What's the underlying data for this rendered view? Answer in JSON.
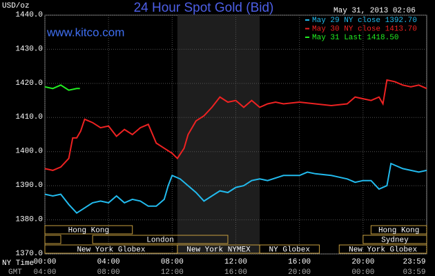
{
  "chart_data": {
    "type": "line",
    "title": "24 Hour Spot Gold (Bid)",
    "subtitle": "May 31, 2013 02:06",
    "watermark": "www.kitco.com",
    "ylabel": "USD/oz",
    "xlabel": "NY Time",
    "x2label": "GMT",
    "xlim": [
      0,
      24
    ],
    "ylim": [
      1370,
      1440
    ],
    "grid": true,
    "legend": "top-right",
    "background": "#000000",
    "shaded": [
      8.33,
      13.5
    ],
    "yticks": [
      {
        "value": 1370,
        "label": "1370.0"
      },
      {
        "value": 1380,
        "label": "1380.0"
      },
      {
        "value": 1390,
        "label": "1390.0"
      },
      {
        "value": 1400,
        "label": "1400.0"
      },
      {
        "value": 1410,
        "label": "1410.0"
      },
      {
        "value": 1420,
        "label": "1420.0"
      },
      {
        "value": 1430,
        "label": "1430.0"
      },
      {
        "value": 1440,
        "label": "1440.0"
      }
    ],
    "xticks": [
      {
        "value": 0,
        "label": "00:00"
      },
      {
        "value": 4,
        "label": "04:00"
      },
      {
        "value": 8,
        "label": "08:00"
      },
      {
        "value": 12,
        "label": "12:00"
      },
      {
        "value": 16,
        "label": "16:00"
      },
      {
        "value": 20,
        "label": "20:00"
      },
      {
        "value": 23.98,
        "label": "23:59"
      }
    ],
    "x2ticks": [
      {
        "value": 0,
        "label": "04:00"
      },
      {
        "value": 4,
        "label": "08:00"
      },
      {
        "value": 8,
        "label": "12:00"
      },
      {
        "value": 12,
        "label": "16:00"
      },
      {
        "value": 16,
        "label": "20:00"
      },
      {
        "value": 20,
        "label": "00:00"
      },
      {
        "value": 23.98,
        "label": "03:59"
      }
    ],
    "sessions": [
      {
        "label": "Hong Kong",
        "start": 0,
        "end": 5.5,
        "row": 0
      },
      {
        "label": "Hong Kong",
        "start": 20.5,
        "end": 24,
        "row": 0
      },
      {
        "label": "London",
        "start": 3,
        "end": 11.5,
        "row": 1
      },
      {
        "label": "Sydney",
        "start": 20,
        "end": 24,
        "row": 1
      },
      {
        "label": "New York Globex",
        "start": 0,
        "end": 8.33,
        "row": 2
      },
      {
        "label": "New York NYMEX",
        "start": 8.33,
        "end": 13.5,
        "row": 2
      },
      {
        "label": "NY Globex",
        "start": 13.5,
        "end": 17.25,
        "row": 2
      },
      {
        "label": "New York Globex",
        "start": 18.5,
        "end": 24,
        "row": 2
      }
    ],
    "series": [
      {
        "name": "May 29 NY close 1392.70",
        "color": "#22bbee",
        "x": [
          0,
          0.5,
          1,
          1.5,
          2,
          2.5,
          3,
          3.5,
          4,
          4.5,
          5,
          5.5,
          6,
          6.5,
          7,
          7.5,
          7.75,
          8,
          8.5,
          9,
          9.5,
          10,
          10.5,
          11,
          11.5,
          12,
          12.5,
          13,
          13.5,
          14,
          15,
          16,
          16.5,
          17,
          18,
          19,
          19.5,
          20,
          20.5,
          21,
          21.5,
          21.75,
          22,
          22.5,
          23,
          23.5,
          24
        ],
        "values": [
          1387.5,
          1387,
          1387.5,
          1384.5,
          1382,
          1383.5,
          1385,
          1385.5,
          1385,
          1387,
          1385,
          1386,
          1385.5,
          1384,
          1384,
          1386,
          1390,
          1393,
          1392,
          1390,
          1388,
          1385.5,
          1387,
          1388.5,
          1388,
          1389.5,
          1390,
          1391.5,
          1392,
          1391.5,
          1393,
          1393,
          1394,
          1393.5,
          1393,
          1392,
          1391,
          1391.5,
          1391.5,
          1389,
          1390,
          1396.5,
          1396,
          1395,
          1394.5,
          1394,
          1394.5
        ]
      },
      {
        "name": "May 30 NY close 1413.70",
        "color": "#ee2222",
        "x": [
          0,
          0.5,
          1,
          1.5,
          1.75,
          2,
          2.25,
          2.5,
          3,
          3.5,
          4,
          4.5,
          5,
          5.5,
          6,
          6.5,
          7,
          7.5,
          8,
          8.33,
          8.75,
          9,
          9.5,
          10,
          10.5,
          11,
          11.5,
          12,
          12.5,
          13,
          13.5,
          14,
          14.5,
          15,
          16,
          17,
          18,
          19,
          19.5,
          20,
          20.5,
          21,
          21.25,
          21.5,
          22,
          22.5,
          23,
          23.5,
          24
        ],
        "values": [
          1395,
          1394.5,
          1395.5,
          1398,
          1404,
          1404,
          1406,
          1409.5,
          1408.5,
          1407,
          1407.5,
          1404.5,
          1406.5,
          1405,
          1407,
          1408,
          1402.5,
          1401,
          1399.5,
          1398,
          1401,
          1405,
          1409,
          1410.5,
          1413,
          1416,
          1414.5,
          1415,
          1413,
          1415,
          1413,
          1414,
          1414.5,
          1414,
          1414.5,
          1414,
          1413.5,
          1414,
          1416,
          1415.5,
          1415,
          1416,
          1414,
          1421,
          1420.5,
          1419.5,
          1419,
          1419.5,
          1418.5
        ]
      },
      {
        "name": "May 31 Last 1418.50",
        "color": "#22ee22",
        "x": [
          0,
          0.5,
          1,
          1.5,
          2,
          2.2
        ],
        "values": [
          1419,
          1418.5,
          1419.5,
          1418,
          1418.5,
          1418.5
        ]
      }
    ]
  }
}
